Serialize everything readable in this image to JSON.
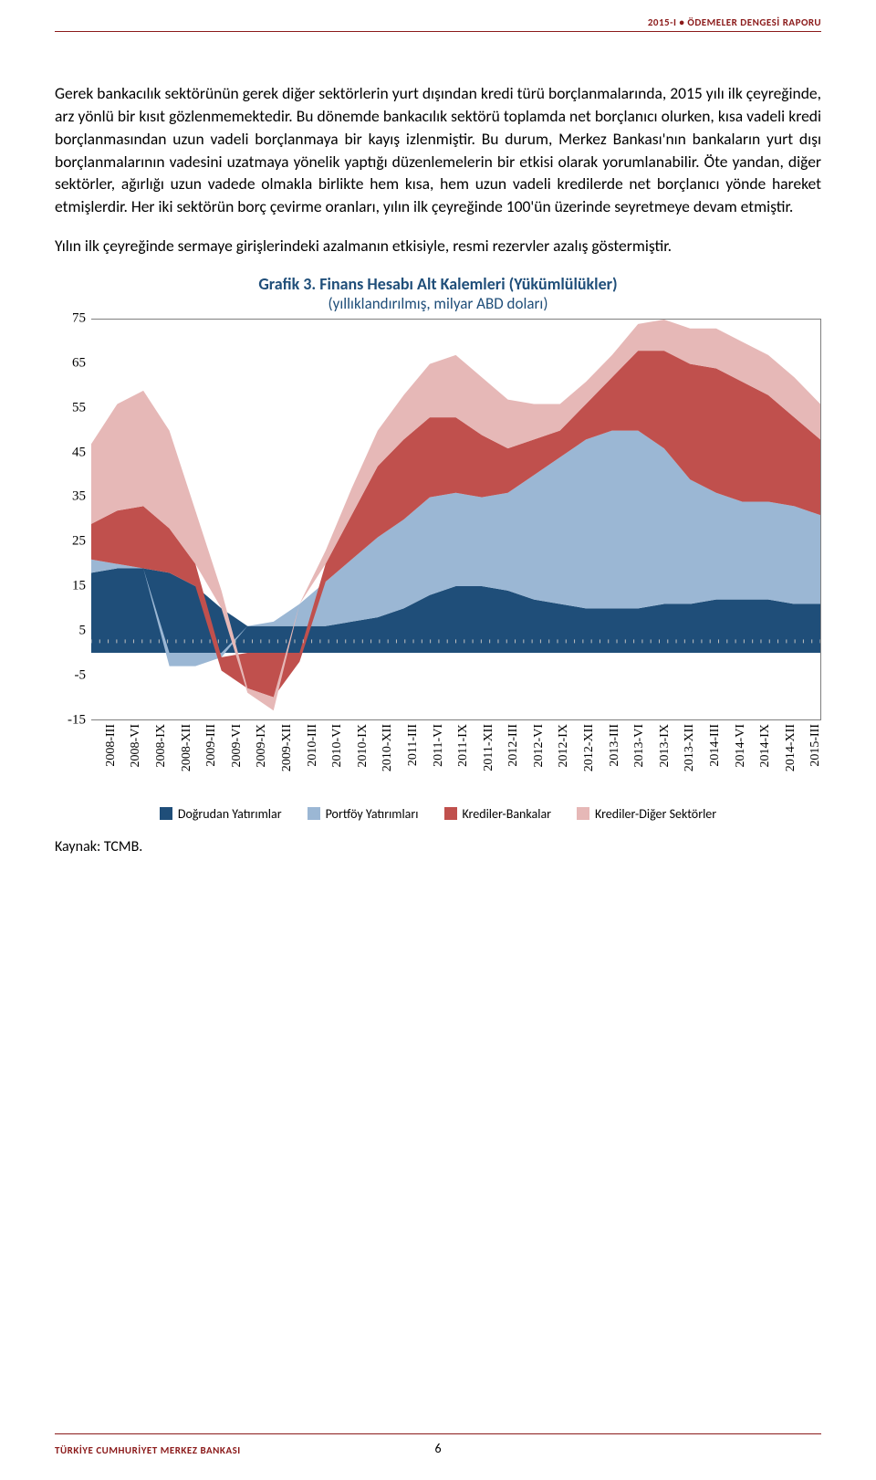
{
  "header": {
    "right": "2015-I • ÖDEMELER DENGESİ RAPORU"
  },
  "paragraphs": {
    "p1": "Gerek bankacılık sektörünün gerek diğer sektörlerin yurt dışından kredi türü borçlanmalarında, 2015 yılı ilk çeyreğinde, arz yönlü bir kısıt gözlenmemektedir. Bu dönemde bankacılık sektörü toplamda net borçlanıcı olurken, kısa vadeli kredi borçlanmasından uzun vadeli borçlanmaya bir kayış izlenmiştir. Bu durum, Merkez Bankası'nın bankaların yurt dışı borçlanmalarının vadesini uzatmaya yönelik yaptığı düzenlemelerin bir etkisi olarak yorumlanabilir. Öte yandan, diğer sektörler, ağırlığı uzun vadede olmakla birlikte hem kısa, hem uzun vadeli kredilerde net borçlanıcı yönde hareket etmişlerdir. Her iki sektörün borç çevirme oranları, yılın ilk çeyreğinde 100'ün üzerinde seyretmeye devam etmiştir.",
    "p2": "Yılın ilk çeyreğinde sermaye girişlerindeki azalmanın etkisiyle, resmi rezervler azalış göstermiştir."
  },
  "chart": {
    "title": "Grafik 3. Finans Hesabı Alt Kalemleri (Yükümlülükler)",
    "subtitle": "(yıllıklandırılmış, milyar ABD doları)",
    "type": "stacked-area",
    "ymin": -15,
    "ymax": 75,
    "ystep": 10,
    "yticks": [
      75,
      65,
      55,
      45,
      35,
      25,
      15,
      5,
      -5,
      -15
    ],
    "xlabels": [
      "2008-III",
      "2008-VI",
      "2008-IX",
      "2008-XII",
      "2009-III",
      "2009-VI",
      "2009-IX",
      "2009-XII",
      "2010-III",
      "2010-VI",
      "2010-IX",
      "2010-XII",
      "2011-III",
      "2011-VI",
      "2011-IX",
      "2011-XII",
      "2012-III",
      "2012-VI",
      "2012-IX",
      "2012-XII",
      "2013-III",
      "2013-VI",
      "2013-IX",
      "2013-XII",
      "2014-III",
      "2014-VI",
      "2014-IX",
      "2014-XII",
      "2015-III"
    ],
    "series": {
      "dogrudan": [
        18,
        19,
        19,
        18,
        15,
        10,
        6,
        6,
        6,
        6,
        7,
        8,
        10,
        13,
        15,
        15,
        14,
        12,
        11,
        10,
        10,
        10,
        11,
        11,
        12,
        12,
        12,
        11,
        11
      ],
      "portfoy": [
        3,
        1,
        0,
        -3,
        -3,
        -1,
        0,
        1,
        5,
        10,
        14,
        18,
        20,
        22,
        21,
        20,
        22,
        28,
        33,
        38,
        40,
        40,
        35,
        28,
        24,
        22,
        22,
        22,
        20
      ],
      "kr_banka": [
        8,
        12,
        14,
        10,
        5,
        -3,
        -8,
        -10,
        -2,
        4,
        10,
        16,
        18,
        18,
        17,
        14,
        10,
        8,
        6,
        8,
        12,
        18,
        22,
        26,
        28,
        27,
        24,
        20,
        17
      ],
      "kr_diger": [
        18,
        24,
        26,
        22,
        12,
        4,
        -1,
        -3,
        0,
        3,
        6,
        8,
        10,
        12,
        14,
        13,
        11,
        8,
        6,
        5,
        5,
        6,
        7,
        8,
        9,
        9,
        9,
        9,
        8
      ]
    },
    "colors": {
      "dogrudan": "#1f4e79",
      "portfoy": "#9bb7d4",
      "kr_banka": "#c0504d",
      "kr_diger": "#e6b8b7",
      "border": "#7f7f7f",
      "grid": "#d9d9d9",
      "tick": "#bfbfbf"
    },
    "legend": {
      "dogrudan": "Doğrudan Yatırımlar",
      "portfoy": "Portföy Yatırımları",
      "kr_banka": "Krediler-Bankalar",
      "kr_diger": "Krediler-Diğer Sektörler"
    }
  },
  "source": "Kaynak: TCMB.",
  "footer": {
    "left": "TÜRKİYE CUMHURİYET MERKEZ BANKASI",
    "page": "6"
  }
}
